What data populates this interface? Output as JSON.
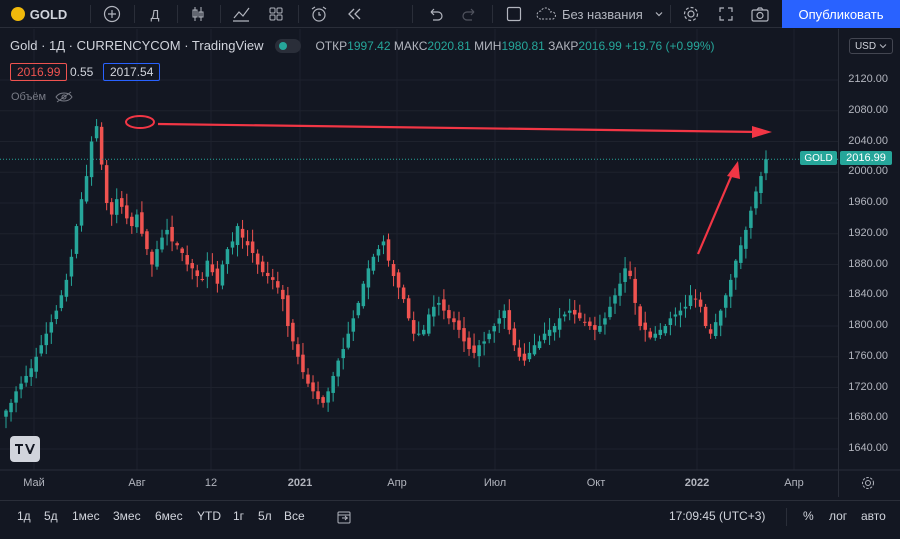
{
  "toolbar": {
    "symbol": "GOLD",
    "interval": "Д",
    "layout_name": "Без названия",
    "publish_label": "Опубликовать"
  },
  "legend": {
    "title": "Gold · 1Д · CURRENCYCOM · TradingView",
    "open_label": "ОТКР",
    "open": "1997.42",
    "high_label": "МАКС",
    "high": "2020.81",
    "low_label": "МИН",
    "low": "1980.81",
    "close_label": "ЗАКР",
    "close": "2016.99",
    "change": "+19.76 (+0.99%)",
    "bid": "2016.99",
    "spread": "0.55",
    "ask": "2017.54",
    "volume_label": "Объём"
  },
  "price_axis": {
    "currency": "USD",
    "ticks": [
      "2120.00",
      "2080.00",
      "2040.00",
      "2000.00",
      "1960.00",
      "1920.00",
      "1880.00",
      "1840.00",
      "1800.00",
      "1760.00",
      "1720.00",
      "1680.00",
      "1640.00"
    ],
    "last_label": "GOLD",
    "last_price": "2016.99"
  },
  "time_axis": {
    "ticks": [
      "Май",
      "Авг",
      "12",
      "2021",
      "Апр",
      "Июл",
      "Окт",
      "2022",
      "Апр"
    ]
  },
  "bottom_bar": {
    "ranges": [
      "1д",
      "5д",
      "1мес",
      "3мес",
      "6мес",
      "YTD",
      "1г",
      "5л",
      "Все"
    ],
    "clock": "17:09:45 (UTC+3)",
    "percent": "%",
    "log": "лог",
    "auto": "авто"
  },
  "colors": {
    "up": "#26a69a",
    "down": "#ef5350",
    "accent": "#2962ff",
    "annotation": "#f23645"
  },
  "chart_data": {
    "type": "candlestick",
    "title": "Gold, 1Д, CURRENCYCOM",
    "ylim": [
      1620,
      2150
    ],
    "closes": [
      1690,
      1700,
      1715,
      1725,
      1735,
      1745,
      1760,
      1775,
      1790,
      1805,
      1820,
      1840,
      1860,
      1890,
      1930,
      1965,
      1995,
      2040,
      2060,
      2010,
      1960,
      1945,
      1965,
      1955,
      1940,
      1930,
      1945,
      1920,
      1900,
      1880,
      1900,
      1915,
      1925,
      1910,
      1905,
      1895,
      1880,
      1875,
      1865,
      1860,
      1885,
      1870,
      1855,
      1880,
      1900,
      1910,
      1930,
      1915,
      1905,
      1895,
      1880,
      1870,
      1865,
      1860,
      1850,
      1835,
      1800,
      1780,
      1760,
      1740,
      1725,
      1715,
      1705,
      1700,
      1715,
      1735,
      1755,
      1770,
      1790,
      1810,
      1830,
      1855,
      1875,
      1890,
      1900,
      1910,
      1885,
      1865,
      1850,
      1835,
      1810,
      1790,
      1790,
      1795,
      1815,
      1825,
      1830,
      1820,
      1810,
      1805,
      1795,
      1780,
      1770,
      1765,
      1775,
      1780,
      1790,
      1800,
      1810,
      1820,
      1795,
      1775,
      1760,
      1755,
      1765,
      1775,
      1780,
      1790,
      1795,
      1800,
      1810,
      1815,
      1820,
      1815,
      1810,
      1805,
      1800,
      1795,
      1800,
      1810,
      1825,
      1840,
      1855,
      1875,
      1865,
      1830,
      1800,
      1795,
      1785,
      1790,
      1795,
      1800,
      1810,
      1815,
      1820,
      1825,
      1840,
      1835,
      1825,
      1800,
      1790,
      1805,
      1820,
      1840,
      1860,
      1885,
      1905,
      1925,
      1950,
      1975,
      1995,
      2016.99
    ]
  }
}
